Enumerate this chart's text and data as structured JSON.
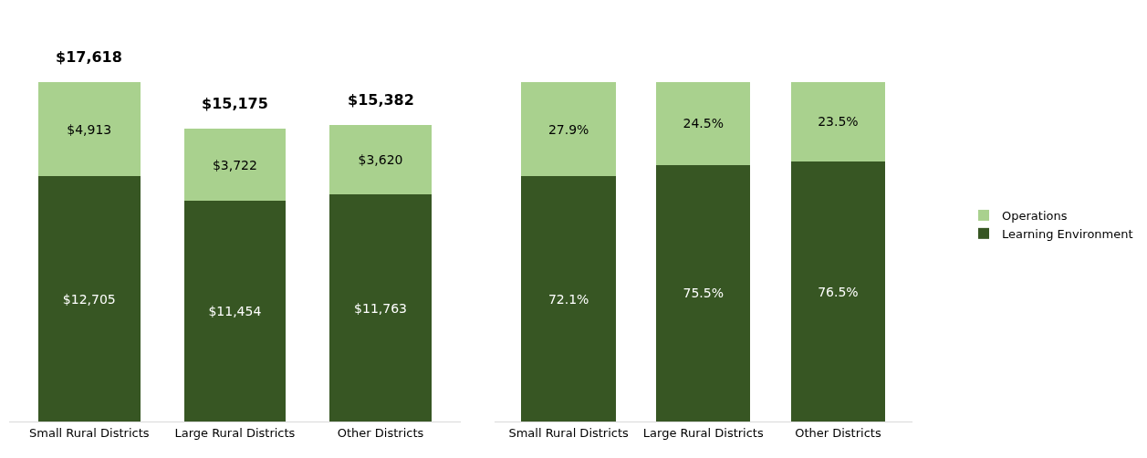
{
  "chart_data": [
    {
      "type": "bar",
      "stacked": true,
      "categories": [
        "Small Rural Districts",
        "Large Rural Districts",
        "Other Districts"
      ],
      "series": [
        {
          "name": "Learning Environment",
          "color": "#375623",
          "values": [
            12705,
            11454,
            11763
          ],
          "value_labels": [
            "$12,705",
            "$11,454",
            "$11,763"
          ]
        },
        {
          "name": "Operations",
          "color": "#a9d18e",
          "values": [
            4913,
            3722,
            3620
          ],
          "value_labels": [
            "$4,913",
            "$3,722",
            "$3,620"
          ]
        }
      ],
      "totals": [
        "$17,618",
        "$15,175",
        "$15,382"
      ],
      "legend": "right",
      "tick_labels": "x"
    },
    {
      "type": "bar",
      "stacked": true,
      "categories": [
        "Small Rural Districts",
        "Large Rural Districts",
        "Other Districts"
      ],
      "series": [
        {
          "name": "Learning Environment",
          "color": "#375623",
          "values": [
            72.1,
            75.5,
            76.5
          ],
          "value_labels": [
            "72.1%",
            "75.5%",
            "76.5%"
          ]
        },
        {
          "name": "Operations",
          "color": "#a9d18e",
          "values": [
            27.9,
            24.5,
            23.5
          ],
          "value_labels": [
            "27.9%",
            "24.5%",
            "23.5%"
          ]
        }
      ],
      "legend": "right",
      "tick_labels": "x"
    }
  ]
}
